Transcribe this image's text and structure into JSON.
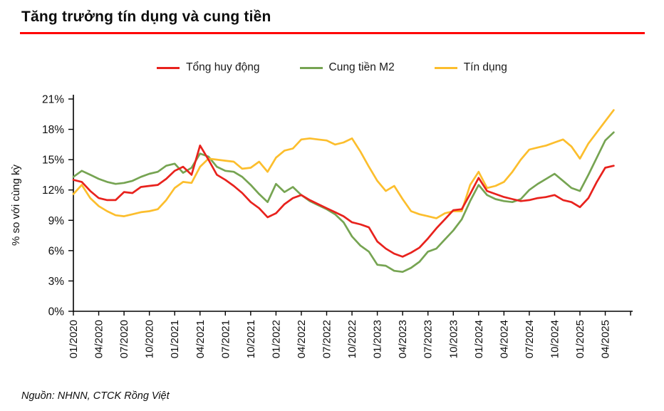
{
  "title": "Tăng trưởng tín dụng và cung tiền",
  "source": "Nguồn: NHNN, CTCK Rồng Việt",
  "accent_colors": {
    "title_rule": "#ff0000",
    "axis": "#000000"
  },
  "chart_data": {
    "type": "line",
    "title": "Tăng trưởng tín dụng và cung tiền",
    "xlabel": "",
    "ylabel": "% so với cùng kỳ",
    "ylim": [
      0,
      21
    ],
    "ytick_step": 3,
    "y_tick_labels": [
      "0%",
      "3%",
      "6%",
      "9%",
      "12%",
      "15%",
      "18%",
      "21%"
    ],
    "x_tick_labels": [
      "01/2020",
      "04/2020",
      "07/2020",
      "10/2020",
      "01/2021",
      "04/2021",
      "07/2021",
      "10/2021",
      "01/2022",
      "04/2022",
      "07/2022",
      "10/2022",
      "01/2023",
      "04/2023",
      "07/2023",
      "10/2023",
      "01/2024",
      "04/2024",
      "07/2024",
      "10/2024",
      "01/2025",
      "04/2025"
    ],
    "grid": false,
    "legend_position": "top",
    "months": [
      "01/2020",
      "02/2020",
      "03/2020",
      "04/2020",
      "05/2020",
      "06/2020",
      "07/2020",
      "08/2020",
      "09/2020",
      "10/2020",
      "11/2020",
      "12/2020",
      "01/2021",
      "02/2021",
      "03/2021",
      "04/2021",
      "05/2021",
      "06/2021",
      "07/2021",
      "08/2021",
      "09/2021",
      "10/2021",
      "11/2021",
      "12/2021",
      "01/2022",
      "02/2022",
      "03/2022",
      "04/2022",
      "05/2022",
      "06/2022",
      "07/2022",
      "08/2022",
      "09/2022",
      "10/2022",
      "11/2022",
      "12/2022",
      "01/2023",
      "02/2023",
      "03/2023",
      "04/2023",
      "05/2023",
      "06/2023",
      "07/2023",
      "08/2023",
      "09/2023",
      "10/2023",
      "11/2023",
      "12/2023",
      "01/2024",
      "02/2024",
      "03/2024",
      "04/2024",
      "05/2024",
      "06/2024",
      "07/2024",
      "08/2024",
      "09/2024",
      "10/2024",
      "11/2024",
      "12/2024",
      "01/2025",
      "02/2025",
      "03/2025",
      "04/2025",
      "05/2025"
    ],
    "series": [
      {
        "name": "Tổng huy động",
        "color": "#E8221D",
        "values": [
          13.0,
          12.8,
          11.9,
          11.2,
          11.0,
          11.0,
          11.8,
          11.7,
          12.3,
          12.4,
          12.5,
          13.1,
          13.9,
          14.3,
          13.5,
          16.4,
          15.0,
          13.5,
          13.0,
          12.4,
          11.7,
          10.8,
          10.2,
          9.3,
          9.7,
          10.6,
          11.2,
          11.5,
          11.0,
          10.6,
          10.2,
          9.8,
          9.4,
          8.8,
          8.6,
          8.3,
          6.9,
          6.2,
          5.7,
          5.4,
          5.8,
          6.3,
          7.2,
          8.2,
          9.1,
          10.0,
          10.1,
          11.6,
          13.2,
          11.9,
          11.6,
          11.3,
          11.1,
          10.9,
          11.0,
          11.2,
          11.3,
          11.5,
          11.0,
          10.8,
          10.3,
          11.2,
          12.8,
          14.2,
          14.4
        ]
      },
      {
        "name": "Cung tiền M2",
        "color": "#76A452",
        "values": [
          13.3,
          13.9,
          13.5,
          13.1,
          12.8,
          12.6,
          12.7,
          12.9,
          13.3,
          13.6,
          13.8,
          14.4,
          14.6,
          13.7,
          14.2,
          15.6,
          15.3,
          14.3,
          13.9,
          13.8,
          13.3,
          12.5,
          11.6,
          10.8,
          12.6,
          11.8,
          12.3,
          11.5,
          10.9,
          10.5,
          10.1,
          9.6,
          8.8,
          7.4,
          6.5,
          5.9,
          4.6,
          4.5,
          4.0,
          3.9,
          4.3,
          4.9,
          5.9,
          6.2,
          7.1,
          8.0,
          9.1,
          10.9,
          12.5,
          11.5,
          11.1,
          10.9,
          10.8,
          11.1,
          12.0,
          12.6,
          13.1,
          13.6,
          12.9,
          12.2,
          11.9,
          13.5,
          15.2,
          16.9,
          17.7
        ]
      },
      {
        "name": "Tín dụng",
        "color": "#FCBE2D",
        "values": [
          11.6,
          12.5,
          11.2,
          10.4,
          9.9,
          9.5,
          9.4,
          9.6,
          9.8,
          9.9,
          10.1,
          11.0,
          12.2,
          12.8,
          12.7,
          14.3,
          15.1,
          15.0,
          14.9,
          14.8,
          14.1,
          14.2,
          14.8,
          13.8,
          15.2,
          15.9,
          16.1,
          17.0,
          17.1,
          17.0,
          16.9,
          16.5,
          16.7,
          17.1,
          15.8,
          14.3,
          12.9,
          11.9,
          12.4,
          11.1,
          9.9,
          9.6,
          9.4,
          9.2,
          9.7,
          9.9,
          9.9,
          12.5,
          13.8,
          12.2,
          12.4,
          12.8,
          13.8,
          15.0,
          16.0,
          16.2,
          16.4,
          16.7,
          17.0,
          16.3,
          15.1,
          16.6,
          17.7,
          18.8,
          19.9
        ]
      }
    ]
  }
}
